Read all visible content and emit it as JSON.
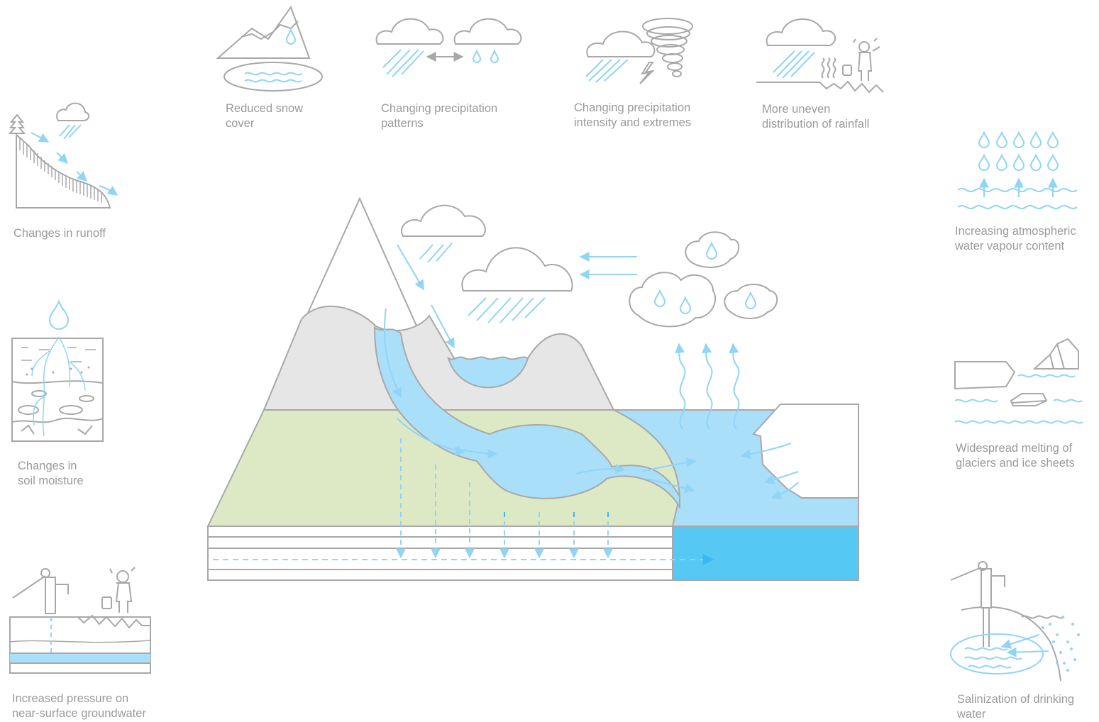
{
  "colors": {
    "stroke": "#a8a8a8",
    "water": "#aadffa",
    "water_line": "#90d4f6",
    "deep_water": "#55c8f4",
    "land": "#dde9c4",
    "mountain": "#e6e6e6",
    "text": "#9a9a9a"
  },
  "captions": {
    "snow": [
      "Reduced snow",
      "cover"
    ],
    "precip_patterns": [
      "Changing precipitation",
      "patterns"
    ],
    "precip_extremes": [
      "Changing precipitation",
      "intensity and extremes"
    ],
    "rainfall": [
      "More uneven",
      "distribution of rainfall"
    ],
    "runoff": [
      "Changes in runoff"
    ],
    "vapour": [
      "Increasing atmospheric",
      "water vapour content"
    ],
    "soil": [
      "Changes in",
      "soil moisture"
    ],
    "glaciers": [
      "Widespread melting of",
      "glaciers and ice sheets"
    ],
    "groundwater": [
      "Increased pressure on",
      "near-surface groundwater"
    ],
    "salinization": [
      "Salinization of drinking",
      "water"
    ]
  },
  "icons": [
    "mountain-snow-icon",
    "rain-cloud-icon",
    "tornado-icon",
    "person-bucket-icon",
    "pump-icon",
    "ice-floe-icon"
  ]
}
